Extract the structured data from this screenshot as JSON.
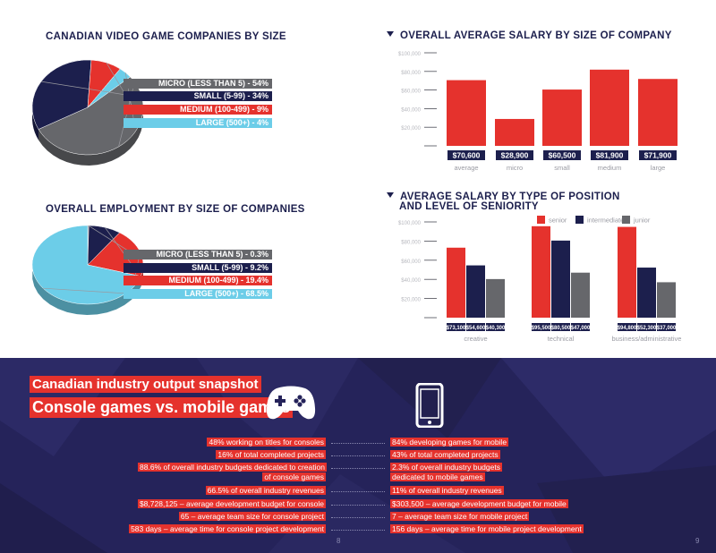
{
  "pie1": {
    "title": "CANADIAN VIDEO GAME COMPANIES BY SIZE",
    "legend": [
      "MICRO (LESS THAN 5)  - 54%",
      "SMALL (5-99) - 34%",
      "MEDIUM  (100-499) - 9%",
      "LARGE (500+) - 4%"
    ]
  },
  "pie2": {
    "title": "OVERALL EMPLOYMENT BY SIZE OF COMPANIES",
    "legend": [
      "MICRO (LESS THAN 5) - 0.3%",
      "SMALL (5-99) - 9.2%",
      "MEDIUM  (100-499) - 19.4%",
      "LARGE (500+) - 68.5%"
    ]
  },
  "bar1": {
    "title": "OVERALL AVERAGE SALARY BY SIZE OF COMPANY",
    "value_labels": [
      "$70,600",
      "$28,900",
      "$60,500",
      "$81,900",
      "$71,900"
    ]
  },
  "bar2": {
    "title_line1": "AVERAGE SALARY BY TYPE OF POSITION",
    "title_line2": "AND LEVEL OF SENIORITY",
    "value_labels": [
      [
        "$73,100",
        "$54,600",
        "$40,300"
      ],
      [
        "$95,500",
        "$80,500",
        "$47,000"
      ],
      [
        "$94,800",
        "$52,300",
        "$37,000"
      ]
    ]
  },
  "chart_data": [
    {
      "type": "pie",
      "title": "CANADIAN VIDEO GAME COMPANIES BY SIZE",
      "categories": [
        "MICRO (LESS THAN 5)",
        "SMALL (5-99)",
        "MEDIUM  (100-499)",
        "LARGE (500+)"
      ],
      "values": [
        54,
        34,
        9,
        4
      ],
      "colors": [
        "#66676b",
        "#1c1f4d",
        "#e5322d",
        "#6ccde8"
      ],
      "legend": "right"
    },
    {
      "type": "pie",
      "title": "OVERALL EMPLOYMENT BY SIZE OF COMPANIES",
      "categories": [
        "MICRO (LESS THAN 5)",
        "SMALL (5-99)",
        "MEDIUM  (100-499)",
        "LARGE (500+)"
      ],
      "values": [
        0.3,
        9.2,
        19.4,
        68.5
      ],
      "colors": [
        "#66676b",
        "#1c1f4d",
        "#e5322d",
        "#6ccde8"
      ],
      "legend": "right"
    },
    {
      "type": "bar",
      "title": "OVERALL AVERAGE SALARY BY SIZE OF COMPANY",
      "categories": [
        "average",
        "micro",
        "small",
        "medium",
        "large"
      ],
      "values": [
        70600,
        28900,
        60500,
        81900,
        71900
      ],
      "color": "#e5322d",
      "yticks": [
        "$100,000",
        "$80,000",
        "$60,000",
        "$40,000",
        "$20,000"
      ],
      "ylim": [
        0,
        100000
      ],
      "grid": false
    },
    {
      "type": "bar",
      "title": "AVERAGE SALARY BY TYPE OF POSITION AND LEVEL OF SENIORITY",
      "categories": [
        "creative",
        "technical",
        "business/administrative"
      ],
      "series": [
        {
          "name": "senior",
          "values": [
            73100,
            95500,
            94800
          ],
          "color": "#e5322d"
        },
        {
          "name": "intermediate",
          "values": [
            54600,
            80500,
            52300
          ],
          "color": "#1c1f4d"
        },
        {
          "name": "junior",
          "values": [
            40300,
            47000,
            37000
          ],
          "color": "#66676b"
        }
      ],
      "yticks": [
        "$100,000",
        "$80,000",
        "$60,000",
        "$40,000",
        "$20,000"
      ],
      "ylim": [
        0,
        100000
      ],
      "legend": "top-right",
      "grid": false
    }
  ],
  "bottom": {
    "heading1": "Canadian industry output snapshot",
    "heading2": "Console games vs. mobile games",
    "left": [
      "48% working on titles for consoles",
      "16% of total completed projects",
      "88.6% of overall industry budgets dedicated to creation of console games",
      "66.5% of overall industry revenues",
      "$8,728,125 – average development budget for console",
      "65 – average team size for console project",
      "583 days – average time for console project development"
    ],
    "right": [
      "84% developing games for mobile",
      "43% of total completed projects",
      "2.3% of overall industry budgets dedicated to mobile games",
      "11% of overall industry revenues",
      "$303,500 – average development budget for mobile",
      "7 – average team size for mobile project",
      "156 days – average time for mobile project development"
    ],
    "page_left": "8",
    "page_right": "9"
  },
  "icons": [
    "gamepad-icon",
    "smartphone-icon"
  ]
}
